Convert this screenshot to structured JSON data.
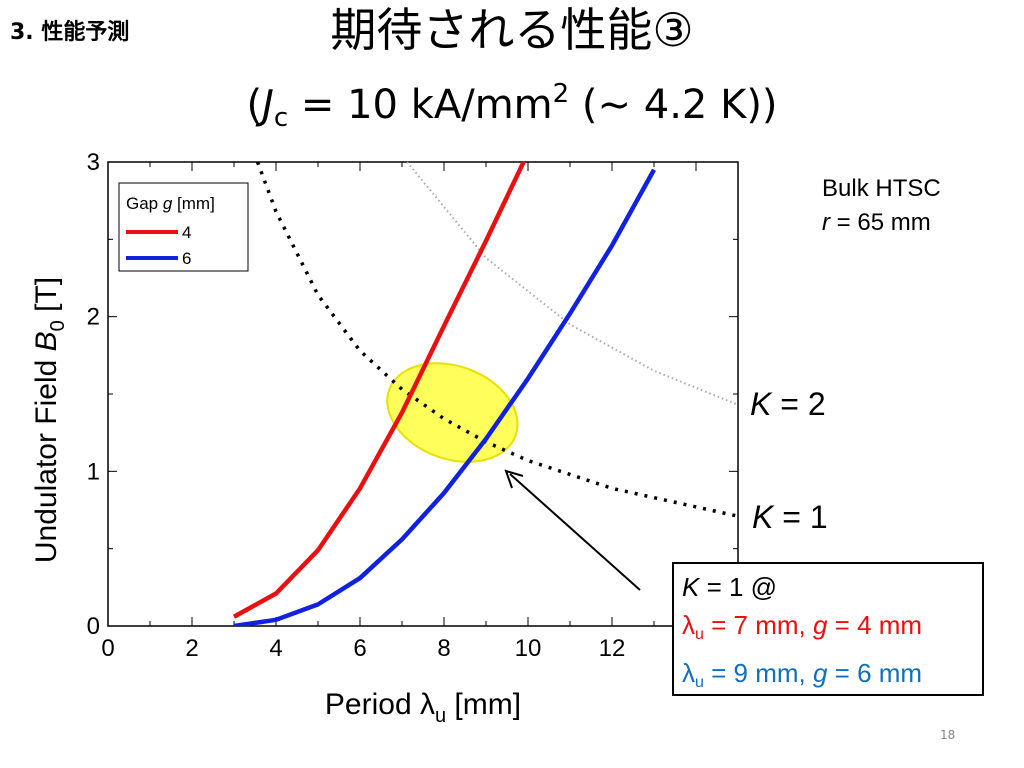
{
  "section": "3. 性能予測",
  "title": "期待される性能③",
  "subtitle": {
    "open": "(",
    "j": "J",
    "j_sub": "c",
    "mid": " = 10 kA/mm",
    "sup": "2",
    "tail": " (~ 4.2 K))"
  },
  "note": {
    "line1": "Bulk HTSC",
    "line2_var": "r",
    "line2_rest": " = 65 mm"
  },
  "k_labels": [
    {
      "var": "K",
      "rest": " = 2"
    },
    {
      "var": "K",
      "rest": " = 1"
    }
  ],
  "callout": {
    "line1_var": "K",
    "line1_rest": " = 1 @",
    "line2": {
      "sym": "λ",
      "sub": "u",
      "mid": " = 7 mm, ",
      "var": "g",
      "rest": " = 4 mm"
    },
    "line3": {
      "sym": "λ",
      "sub": "u",
      "mid": " = 9 mm, ",
      "var": "g",
      "rest": " = 6 mm"
    }
  },
  "page_number": "18",
  "chart_data": {
    "type": "line",
    "xlabel": {
      "prefix": "Period ",
      "sym": "λ",
      "sub": "u",
      "suffix": " [mm]"
    },
    "ylabel": {
      "prefix": "Undulator Field ",
      "var": "B",
      "sub": "0",
      "suffix": " [T]"
    },
    "xlim": [
      0,
      15
    ],
    "ylim": [
      0,
      3
    ],
    "x_ticks": [
      "0",
      "2",
      "4",
      "6",
      "8",
      "10",
      "12"
    ],
    "y_ticks": [
      "0",
      "1",
      "2",
      "3"
    ],
    "legend": {
      "title_prefix": "Gap ",
      "title_var": "g",
      "title_suffix": " [mm]",
      "placement": "top-left"
    },
    "series": [
      {
        "name": "4",
        "color": "#e81010",
        "x": [
          3,
          4,
          5,
          6,
          7,
          8,
          9,
          10
        ],
        "y": [
          0.06,
          0.21,
          0.49,
          0.89,
          1.38,
          1.94,
          2.49,
          3.06
        ]
      },
      {
        "name": "6",
        "color": "#1022e0",
        "x": [
          3,
          4,
          5,
          6,
          7,
          8,
          9,
          10,
          11,
          12,
          13
        ],
        "y": [
          0.0,
          0.04,
          0.14,
          0.31,
          0.56,
          0.86,
          1.21,
          1.6,
          2.02,
          2.46,
          2.95
        ]
      }
    ],
    "k_curves": [
      {
        "k": 2,
        "style": "dotted-gray",
        "x": [
          7.12,
          9,
          11,
          13,
          15
        ],
        "y": [
          3.0,
          2.38,
          1.95,
          1.65,
          1.43
        ]
      },
      {
        "k": 1,
        "style": "dotted-black",
        "x": [
          3.56,
          4,
          5,
          6,
          7,
          8,
          9,
          10,
          12,
          15
        ],
        "y": [
          3.0,
          2.68,
          2.14,
          1.78,
          1.53,
          1.34,
          1.19,
          1.07,
          0.89,
          0.71
        ]
      }
    ],
    "highlight": {
      "type": "ellipse",
      "color": "#ffff40",
      "cx": 8.2,
      "cy": 1.38,
      "rx": 1.6,
      "ry": 0.3,
      "angle": -20
    }
  }
}
